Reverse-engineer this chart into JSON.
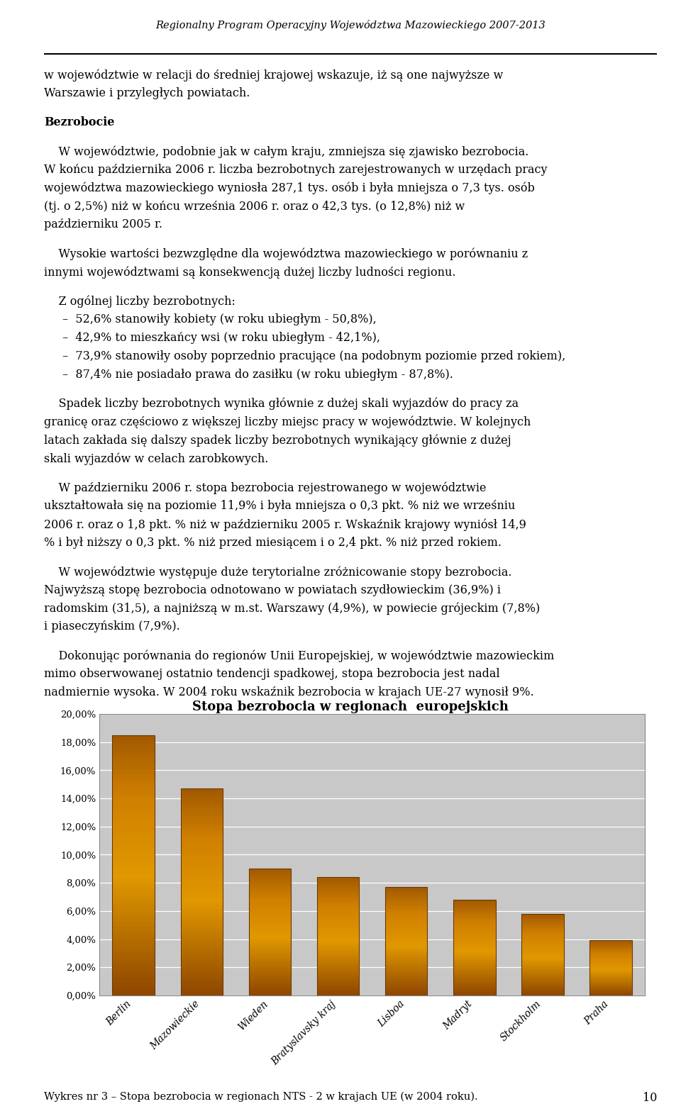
{
  "page_title": "Regionalny Program Operacyjny Województwa Mazowieckiego 2007-2013",
  "body_paragraphs": [
    {
      "text": "w województwie w relacji do średniej krajowej wskazuje, iż są one najwyższe w Warszawie i przyległych powiatach.",
      "indent": false,
      "bold": false,
      "bullet": false
    },
    {
      "text": "",
      "indent": false,
      "bold": false,
      "bullet": false
    },
    {
      "text": "Bezrobocie",
      "indent": false,
      "bold": true,
      "bullet": false
    },
    {
      "text": "",
      "indent": false,
      "bold": false,
      "bullet": false
    },
    {
      "text": "W województwie, podobnie jak w całym kraju, zmniejsza się zjawisko bezrobocia. W końcu października 2006 r. liczba bezrobotnych zarejestrowanych w urzędach pracy województwa mazowieckiego wyniosła 287,1 tys. osób i była mniejsza o 7,3 tys. osób (tj. o 2,5%) niż w końcu września 2006 r. oraz o 42,3 tys. (o 12,8%) niż w październiku 2005 r.",
      "indent": true,
      "bold": false,
      "bullet": false
    },
    {
      "text": "",
      "indent": false,
      "bold": false,
      "bullet": false
    },
    {
      "text": "Wysokie wartości bezwzględne dla województwa mazowieckiego w porównaniu z innymi województwami są konsekwencją dużej liczby ludności regionu.",
      "indent": true,
      "bold": false,
      "bullet": false
    },
    {
      "text": "",
      "indent": false,
      "bold": false,
      "bullet": false
    },
    {
      "text": "Z ogólnej liczby bezrobotnych:",
      "indent": true,
      "bold": false,
      "bullet": false
    },
    {
      "text": "52,6% stanowiły kobiety (w roku ubiegłym - 50,8%),",
      "indent": false,
      "bold": false,
      "bullet": true
    },
    {
      "text": "42,9% to mieszkańcy wsi (w roku ubiegłym - 42,1%),",
      "indent": false,
      "bold": false,
      "bullet": true
    },
    {
      "text": "73,9% stanowiły osoby poprzednio pracujące (na podobnym poziomie przed rokiem),",
      "indent": false,
      "bold": false,
      "bullet": true
    },
    {
      "text": "87,4% nie posiadało prawa do zasiłku (w roku ubiegłym - 87,8%).",
      "indent": false,
      "bold": false,
      "bullet": true
    },
    {
      "text": "",
      "indent": false,
      "bold": false,
      "bullet": false
    },
    {
      "text": "Spadek liczby bezrobotnych wynika głównie z dużej skali wyjazdów do pracy za granicę oraz częściowo z większej liczby miejsc pracy w województwie. W kolejnych latach zakłada się dalszy spadek liczby bezrobotnych wynikający głównie z dużej skali wyjazdów w celach zarobkowych.",
      "indent": true,
      "bold": false,
      "bullet": false
    },
    {
      "text": "",
      "indent": false,
      "bold": false,
      "bullet": false
    },
    {
      "text": "W październiku 2006 r. stopa bezrobocia rejestrowanego w województwie ukształtowała się na poziomie 11,9% i była mniejsza o 0,3 pkt. % niż we wrześniu 2006 r. oraz o 1,8 pkt. % niż w październiku 2005 r. Wskaźnik krajowy wyniósł 14,9 % i był niższy o 0,3 pkt. % niż przed miesiącem i o 2,4 pkt. % niż przed rokiem.",
      "indent": true,
      "bold": false,
      "bullet": false
    },
    {
      "text": "",
      "indent": false,
      "bold": false,
      "bullet": false
    },
    {
      "text": "W województwie występuje duże terytorialne zróżnicowanie stopy bezrobocia. Najwyższą stopę bezrobocia odnotowano w powiatach szydłowieckim (36,9%) i radomskim (31,5), a najniższą w m.st. Warszawy (4,9%), w powiecie grójeckim (7,8%) i piaseczyńskim (7,9%).",
      "indent": true,
      "bold": false,
      "bullet": false
    },
    {
      "text": "",
      "indent": false,
      "bold": false,
      "bullet": false
    },
    {
      "text": "Dokonując porównania do regionów Unii Europejskiej, w województwie mazowieckim mimo obserwowanej ostatnio tendencji spadkowej, stopa bezrobocia jest nadal nadmiernie wysoka. W 2004 roku wskaźnik bezrobocia w krajach UE-27 wynosił 9%.",
      "indent": true,
      "bold": false,
      "bullet": false
    }
  ],
  "chart_title": "Stopa bezrobocia w regionach  europejskich",
  "categories": [
    "Berlin",
    "Mazowieckie",
    "Wieden",
    "Bratyslavsky kraj",
    "Lisboa",
    "Madryt",
    "Stockholm",
    "Praha"
  ],
  "values": [
    0.185,
    0.147,
    0.09,
    0.084,
    0.077,
    0.068,
    0.058,
    0.039
  ],
  "caption": "Wykres nr 3 – Stopa bezrobocia w regionach NTS - 2 w krajach UE (w 2004 roku).",
  "ylim": [
    0,
    0.2
  ],
  "yticks": [
    0.0,
    0.02,
    0.04,
    0.06,
    0.08,
    0.1,
    0.12,
    0.14,
    0.16,
    0.18,
    0.2
  ],
  "ytick_labels": [
    "0,00%",
    "2,00%",
    "4,00%",
    "6,00%",
    "8,00%",
    "10,00%",
    "12,00%",
    "14,00%",
    "16,00%",
    "18,00%",
    "20,00%"
  ],
  "chart_bg_color": "#C8C8C8",
  "page_bg_color": "#FFFFFF",
  "title_font_size": 10.5,
  "body_font_size": 11.5,
  "chart_title_font_size": 13,
  "caption_font_size": 10.5,
  "page_number": "10"
}
